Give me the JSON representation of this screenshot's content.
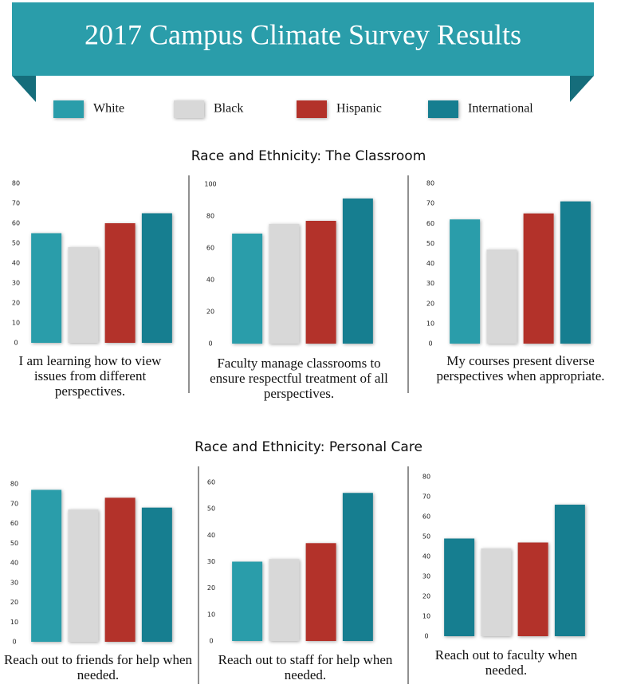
{
  "title": "2017 Campus Climate Survey Results",
  "legend": [
    {
      "name": "White",
      "color": "#2a9daa"
    },
    {
      "name": "Black",
      "color": "#d8d8d8"
    },
    {
      "name": "Hispanic",
      "color": "#b3322a"
    },
    {
      "name": "International",
      "color": "#187e90"
    }
  ],
  "sections": [
    "Race and Ethnicity: The Classroom",
    "Race and Ethnicity: Personal Care"
  ],
  "chart_data": [
    {
      "type": "bar",
      "title": "I am learning how to view issues from different perspectives.",
      "values": [
        55,
        48,
        60,
        65
      ],
      "colors": [
        "#2a9daa",
        "#d8d8d8",
        "#b3322a",
        "#187e90"
      ],
      "ylim": [
        0,
        80
      ],
      "yticks": [
        0,
        10,
        20,
        30,
        40,
        50,
        60,
        70,
        80
      ]
    },
    {
      "type": "bar",
      "title": "Faculty manage classrooms to ensure respectful treatment of all perspectives.",
      "values": [
        69,
        75,
        77,
        91
      ],
      "colors": [
        "#2a9daa",
        "#d8d8d8",
        "#b3322a",
        "#187e90"
      ],
      "ylim": [
        0,
        100
      ],
      "yticks": [
        0,
        20,
        40,
        60,
        80,
        100
      ]
    },
    {
      "type": "bar",
      "title": "My courses present diverse perspectives when appropriate.",
      "values": [
        62,
        47,
        65,
        71
      ],
      "colors": [
        "#2a9daa",
        "#d8d8d8",
        "#b3322a",
        "#187e90"
      ],
      "ylim": [
        0,
        80
      ],
      "yticks": [
        0,
        10,
        20,
        30,
        40,
        50,
        60,
        70,
        80
      ]
    },
    {
      "type": "bar",
      "title": "Reach out to friends for help when needed.",
      "values": [
        77,
        67,
        73,
        68
      ],
      "colors": [
        "#2a9daa",
        "#d8d8d8",
        "#b3322a",
        "#187e90"
      ],
      "ylim": [
        0,
        80
      ],
      "yticks": [
        0,
        10,
        20,
        30,
        40,
        50,
        60,
        70,
        80
      ]
    },
    {
      "type": "bar",
      "title": "Reach out to staff for help when needed.",
      "values": [
        30,
        31,
        37,
        56
      ],
      "colors": [
        "#2a9daa",
        "#d8d8d8",
        "#b3322a",
        "#187e90"
      ],
      "ylim": [
        0,
        60
      ],
      "yticks": [
        0,
        10,
        20,
        30,
        40,
        50,
        60
      ]
    },
    {
      "type": "bar",
      "title": "Reach out to faculty when needed.",
      "values": [
        49,
        44,
        47,
        66
      ],
      "colors": [
        "#187e90",
        "#d8d8d8",
        "#b3322a",
        "#187e90"
      ],
      "ylim": [
        0,
        80
      ],
      "yticks": [
        0,
        10,
        20,
        30,
        40,
        50,
        60,
        70,
        80
      ]
    }
  ]
}
